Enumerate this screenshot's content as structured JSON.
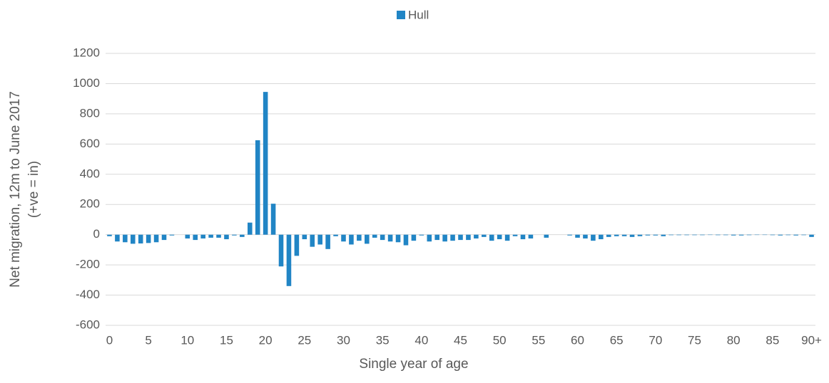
{
  "chart_data": {
    "type": "bar",
    "series": [
      {
        "name": "Hull",
        "color": "#2185c5",
        "values": [
          -10,
          -45,
          -50,
          -60,
          -58,
          -55,
          -50,
          -35,
          -5,
          0,
          -25,
          -35,
          -25,
          -20,
          -20,
          -30,
          -5,
          -15,
          80,
          625,
          945,
          205,
          -210,
          -340,
          -140,
          -30,
          -80,
          -65,
          -95,
          -10,
          -45,
          -65,
          -40,
          -60,
          -20,
          -35,
          -45,
          -50,
          -70,
          -40,
          -5,
          -45,
          -35,
          -45,
          -40,
          -35,
          -35,
          -25,
          -15,
          -40,
          -30,
          -40,
          -10,
          -30,
          -25,
          0,
          -20,
          0,
          0,
          -5,
          -20,
          -25,
          -40,
          -30,
          -15,
          -10,
          -10,
          -15,
          -10,
          -5,
          -5,
          -10,
          -3,
          -3,
          -3,
          -3,
          -3,
          -2,
          -3,
          -3,
          -5,
          -5,
          -3,
          -2,
          -2,
          -3,
          -5,
          -3,
          -5,
          -3,
          -15
        ]
      }
    ],
    "categories": [
      "0",
      null,
      null,
      null,
      null,
      "5",
      null,
      null,
      null,
      null,
      "10",
      null,
      null,
      null,
      null,
      "15",
      null,
      null,
      null,
      null,
      "20",
      null,
      null,
      null,
      null,
      "25",
      null,
      null,
      null,
      null,
      "30",
      null,
      null,
      null,
      null,
      "35",
      null,
      null,
      null,
      null,
      "40",
      null,
      null,
      null,
      null,
      "45",
      null,
      null,
      null,
      null,
      "50",
      null,
      null,
      null,
      null,
      "55",
      null,
      null,
      null,
      null,
      "60",
      null,
      null,
      null,
      null,
      "65",
      null,
      null,
      null,
      null,
      "70",
      null,
      null,
      null,
      null,
      "75",
      null,
      null,
      null,
      null,
      "80",
      null,
      null,
      null,
      null,
      "85",
      null,
      null,
      null,
      null,
      "90+"
    ],
    "ylim": [
      -600,
      1200
    ],
    "yticks": [
      -600,
      -400,
      -200,
      0,
      200,
      400,
      600,
      800,
      1000,
      1200
    ],
    "grid": true,
    "legend": "top",
    "x_label": "Single year of age",
    "y_label": [
      "Net migration, 12m to June 2017",
      "(+ve = in)"
    ]
  }
}
